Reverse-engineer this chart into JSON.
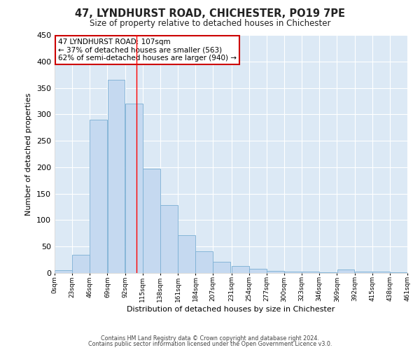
{
  "title": "47, LYNDHURST ROAD, CHICHESTER, PO19 7PE",
  "subtitle": "Size of property relative to detached houses in Chichester",
  "xlabel": "Distribution of detached houses by size in Chichester",
  "ylabel": "Number of detached properties",
  "bar_color": "#c5d9f0",
  "bar_edge_color": "#7bafd4",
  "background_color": "#dce9f5",
  "fig_background": "#ffffff",
  "grid_color": "#ffffff",
  "bin_edges": [
    0,
    23,
    46,
    69,
    92,
    115,
    138,
    161,
    184,
    207,
    231,
    254,
    277,
    300,
    323,
    346,
    369,
    392,
    415,
    438,
    461
  ],
  "bin_labels": [
    "0sqm",
    "23sqm",
    "46sqm",
    "69sqm",
    "92sqm",
    "115sqm",
    "138sqm",
    "161sqm",
    "184sqm",
    "207sqm",
    "231sqm",
    "254sqm",
    "277sqm",
    "300sqm",
    "323sqm",
    "346sqm",
    "369sqm",
    "392sqm",
    "415sqm",
    "438sqm",
    "461sqm"
  ],
  "bar_heights": [
    5,
    35,
    290,
    365,
    320,
    197,
    128,
    71,
    41,
    21,
    13,
    8,
    4,
    3,
    2,
    1,
    6,
    3,
    3,
    1
  ],
  "red_line_x": 107,
  "annotation_title": "47 LYNDHURST ROAD: 107sqm",
  "annotation_line1": "← 37% of detached houses are smaller (563)",
  "annotation_line2": "62% of semi-detached houses are larger (940) →",
  "annotation_box_color": "#ffffff",
  "annotation_box_edge": "#cc0000",
  "ylim": [
    0,
    450
  ],
  "yticks": [
    0,
    50,
    100,
    150,
    200,
    250,
    300,
    350,
    400,
    450
  ],
  "footer1": "Contains HM Land Registry data © Crown copyright and database right 2024.",
  "footer2": "Contains public sector information licensed under the Open Government Licence v3.0."
}
